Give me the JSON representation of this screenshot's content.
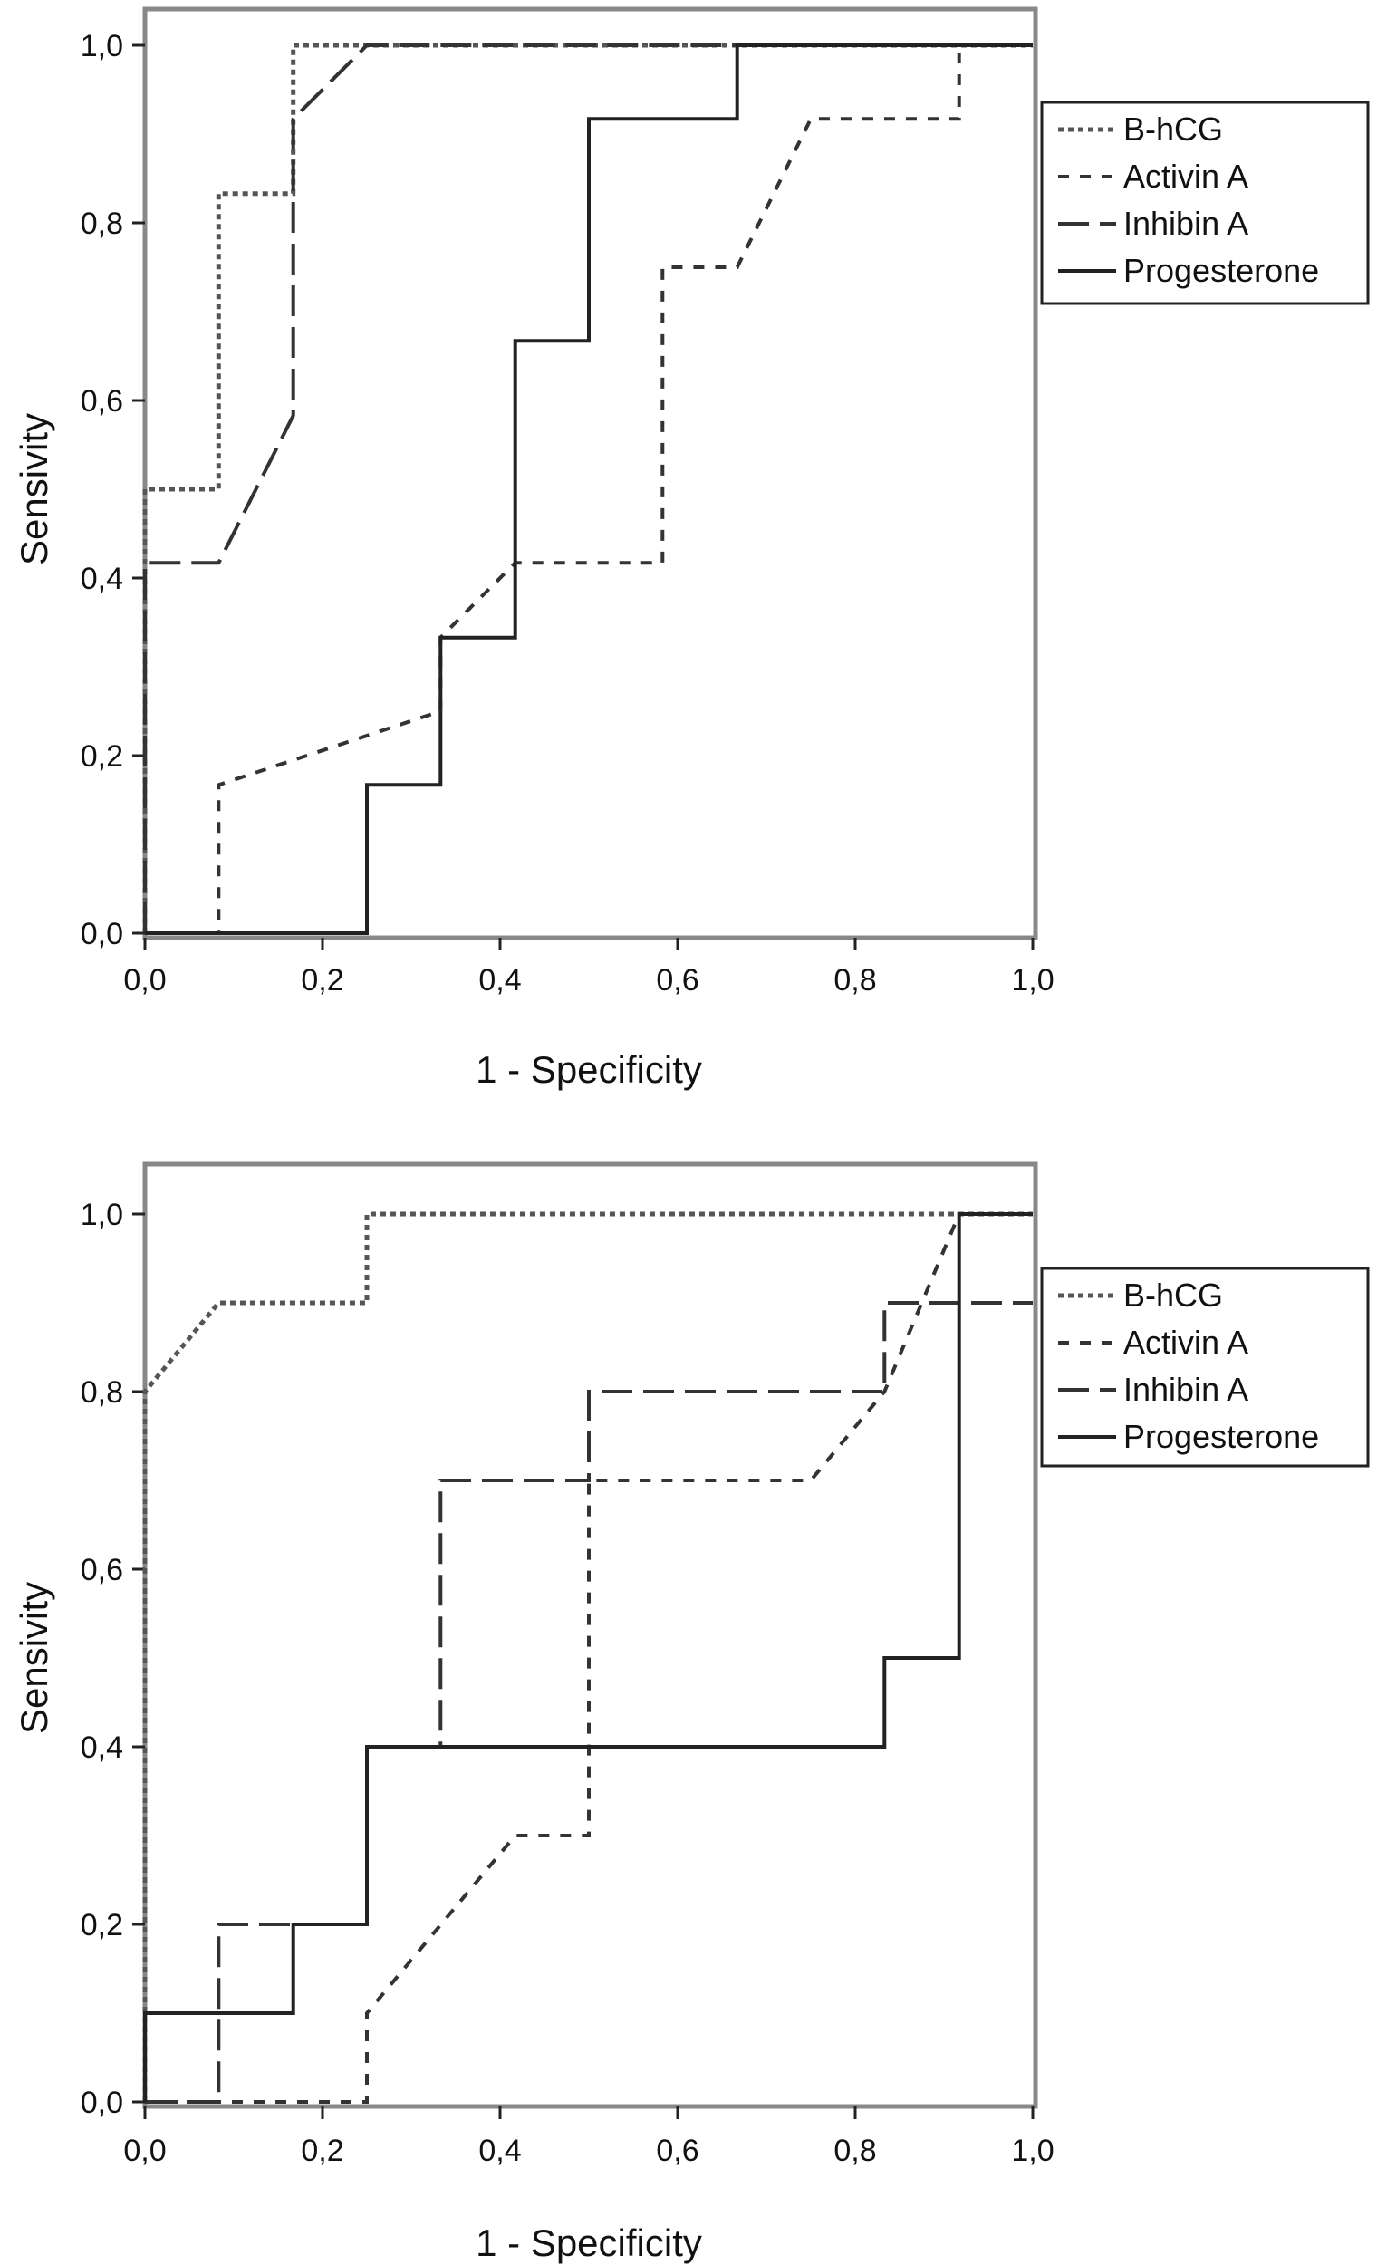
{
  "chart_data": [
    {
      "type": "line",
      "title": "",
      "xlabel": "1 - Specificity",
      "ylabel": "Sensivity",
      "xlim": [
        0,
        1
      ],
      "ylim": [
        0,
        1
      ],
      "grid": false,
      "legend_position": "top-right",
      "x_ticks": [
        "0,0",
        "0,2",
        "0,4",
        "0,6",
        "0,8",
        "1,0"
      ],
      "y_ticks": [
        "0,0",
        "0,2",
        "0,4",
        "0,6",
        "0,8",
        "1,0"
      ],
      "series": [
        {
          "name": "B-hCG",
          "style": "dotted",
          "points": [
            [
              0,
              0
            ],
            [
              0,
              0.5
            ],
            [
              0.083,
              0.5
            ],
            [
              0.083,
              0.833
            ],
            [
              0.167,
              0.833
            ],
            [
              0.167,
              1.0
            ],
            [
              1.0,
              1.0
            ]
          ]
        },
        {
          "name": "Activin A",
          "style": "dashed",
          "points": [
            [
              0,
              0
            ],
            [
              0.083,
              0
            ],
            [
              0.083,
              0.167
            ],
            [
              0.333,
              0.25
            ],
            [
              0.333,
              0.333
            ],
            [
              0.417,
              0.417
            ],
            [
              0.583,
              0.417
            ],
            [
              0.583,
              0.75
            ],
            [
              0.667,
              0.75
            ],
            [
              0.75,
              0.917
            ],
            [
              0.917,
              0.917
            ],
            [
              0.917,
              1.0
            ],
            [
              1.0,
              1.0
            ]
          ]
        },
        {
          "name": "Inhibin A",
          "style": "long-dash",
          "points": [
            [
              0,
              0
            ],
            [
              0,
              0.417
            ],
            [
              0.083,
              0.417
            ],
            [
              0.167,
              0.583
            ],
            [
              0.167,
              0.917
            ],
            [
              0.25,
              1.0
            ],
            [
              1.0,
              1.0
            ]
          ]
        },
        {
          "name": "Progesterone",
          "style": "solid",
          "points": [
            [
              0,
              0
            ],
            [
              0.25,
              0
            ],
            [
              0.25,
              0.167
            ],
            [
              0.333,
              0.167
            ],
            [
              0.333,
              0.333
            ],
            [
              0.417,
              0.333
            ],
            [
              0.417,
              0.667
            ],
            [
              0.5,
              0.667
            ],
            [
              0.5,
              0.917
            ],
            [
              0.667,
              0.917
            ],
            [
              0.667,
              1.0
            ],
            [
              1.0,
              1.0
            ]
          ]
        }
      ]
    },
    {
      "type": "line",
      "title": "",
      "xlabel": "1 - Specificity",
      "ylabel": "Sensivity",
      "xlim": [
        0,
        1
      ],
      "ylim": [
        0,
        1
      ],
      "grid": false,
      "legend_position": "right",
      "x_ticks": [
        "0,0",
        "0,2",
        "0,4",
        "0,6",
        "0,8",
        "1,0"
      ],
      "y_ticks": [
        "0,0",
        "0,2",
        "0,4",
        "0,6",
        "0,8",
        "1,0"
      ],
      "series": [
        {
          "name": "B-hCG",
          "style": "dotted",
          "points": [
            [
              0,
              0
            ],
            [
              0,
              0.8
            ],
            [
              0.083,
              0.9
            ],
            [
              0.25,
              0.9
            ],
            [
              0.25,
              1.0
            ],
            [
              0.917,
              1.0
            ],
            [
              0.917,
              1.0
            ],
            [
              1.0,
              1.0
            ]
          ]
        },
        {
          "name": "Activin A",
          "style": "dashed",
          "points": [
            [
              0,
              0
            ],
            [
              0.25,
              0
            ],
            [
              0.25,
              0.1
            ],
            [
              0.417,
              0.3
            ],
            [
              0.5,
              0.3
            ],
            [
              0.5,
              0.7
            ],
            [
              0.75,
              0.7
            ],
            [
              0.833,
              0.8
            ],
            [
              0.917,
              1.0
            ],
            [
              1.0,
              1.0
            ]
          ]
        },
        {
          "name": "Inhibin A",
          "style": "long-dash",
          "points": [
            [
              0,
              0
            ],
            [
              0.083,
              0
            ],
            [
              0.083,
              0.2
            ],
            [
              0.25,
              0.2
            ],
            [
              0.25,
              0.4
            ],
            [
              0.333,
              0.4
            ],
            [
              0.333,
              0.7
            ],
            [
              0.5,
              0.7
            ],
            [
              0.5,
              0.8
            ],
            [
              0.833,
              0.8
            ],
            [
              0.833,
              0.9
            ],
            [
              1.0,
              0.9
            ]
          ]
        },
        {
          "name": "Progesterone",
          "style": "solid",
          "points": [
            [
              0,
              0
            ],
            [
              0,
              0.1
            ],
            [
              0.167,
              0.1
            ],
            [
              0.167,
              0.2
            ],
            [
              0.25,
              0.2
            ],
            [
              0.25,
              0.4
            ],
            [
              0.833,
              0.4
            ],
            [
              0.833,
              0.5
            ],
            [
              0.917,
              0.5
            ],
            [
              0.917,
              1.0
            ],
            [
              1.0,
              1.0
            ]
          ]
        }
      ]
    }
  ]
}
